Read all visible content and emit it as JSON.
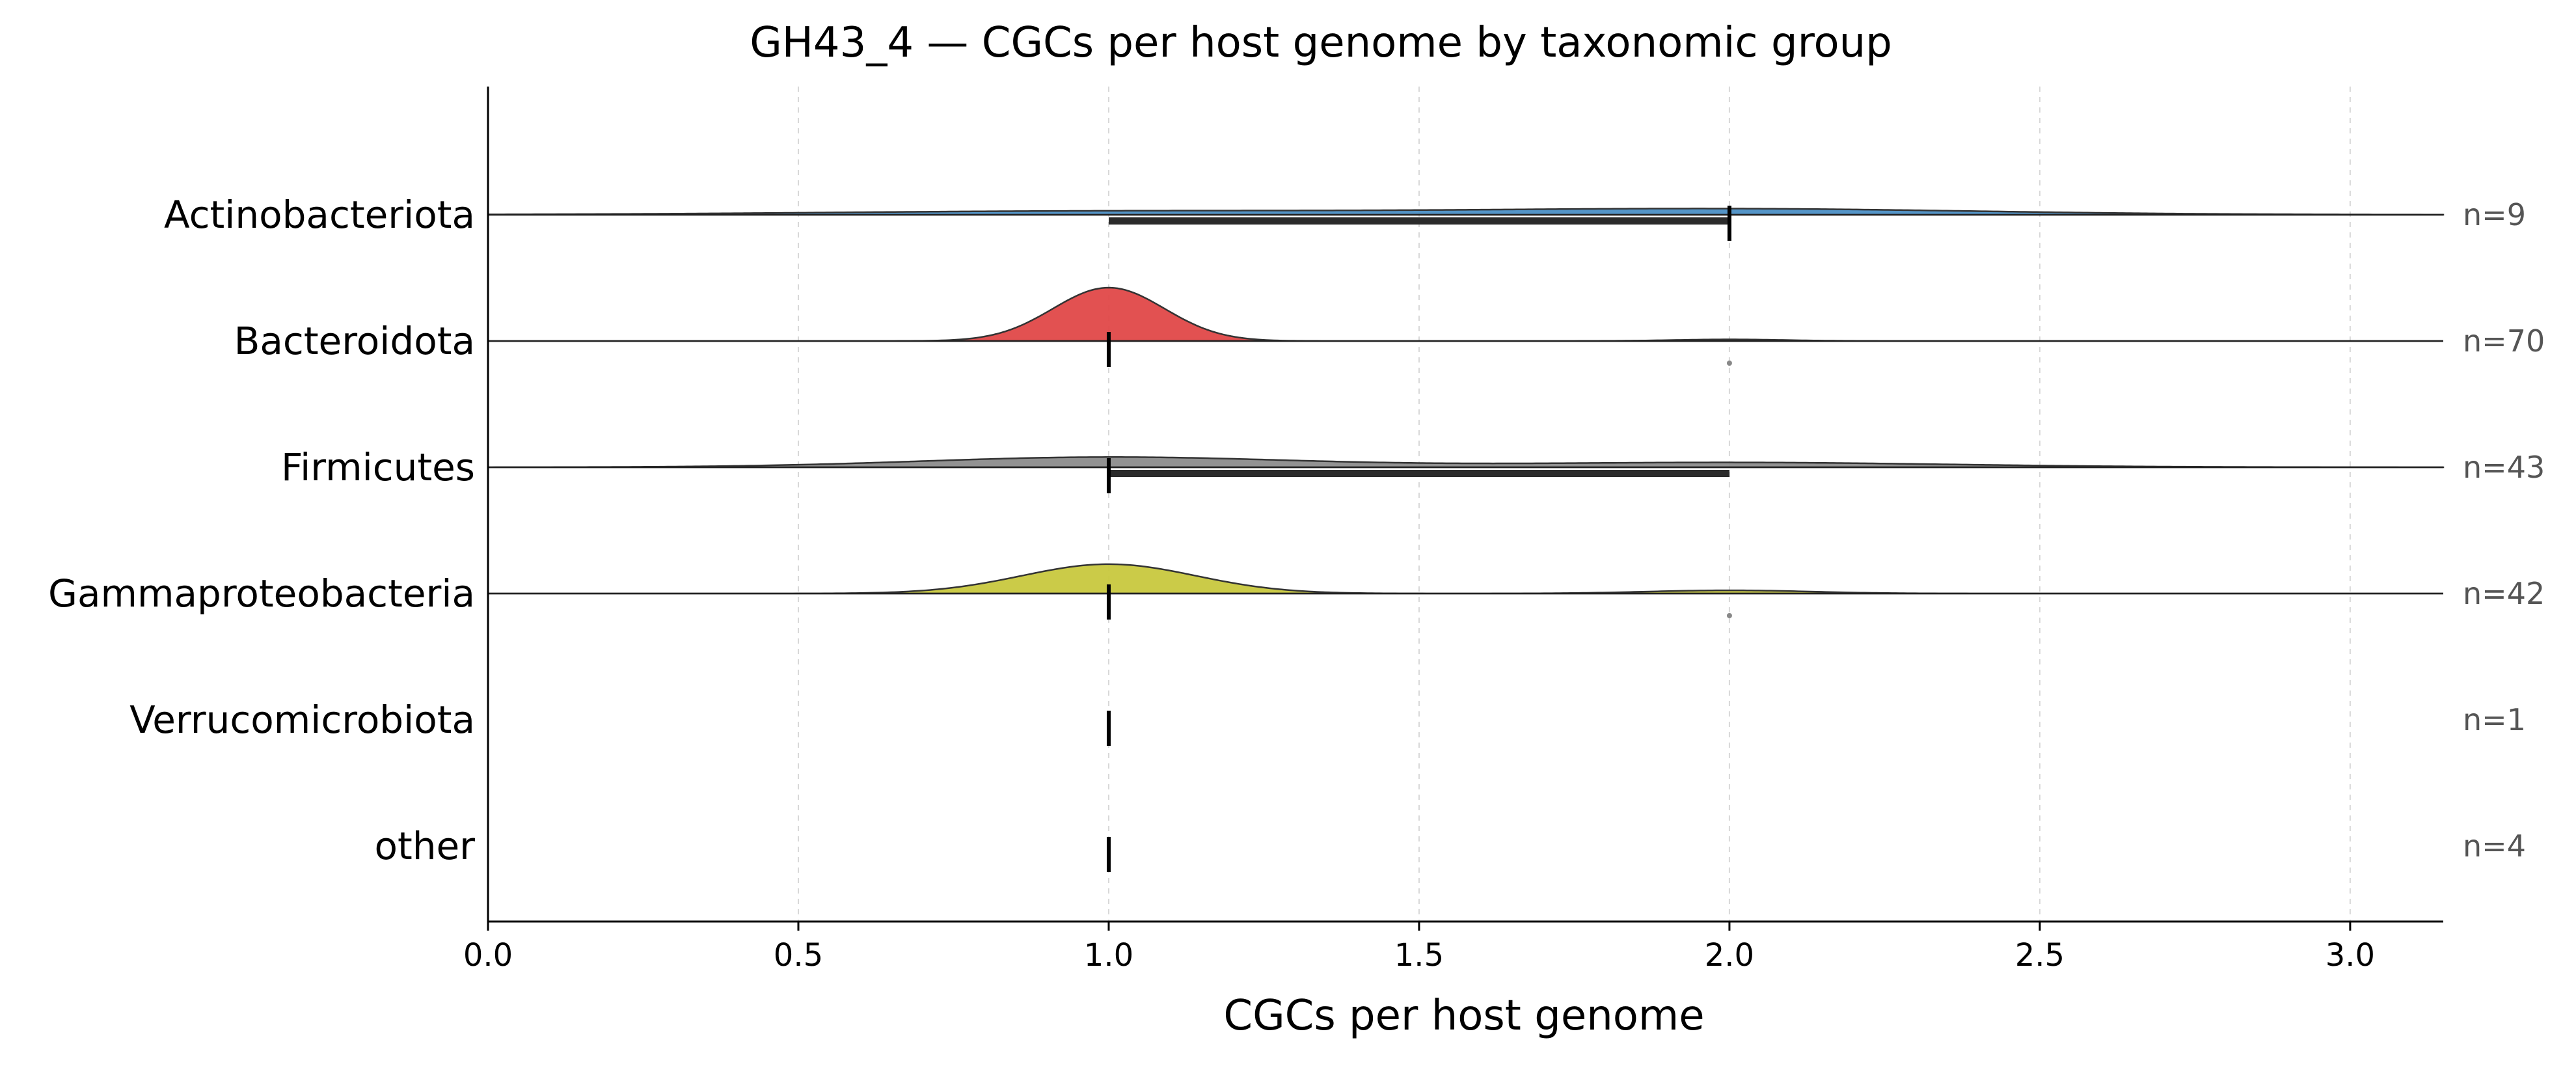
{
  "chart_data": {
    "type": "ridgeline",
    "title": "GH43_4 — CGCs per host genome by taxonomic group",
    "xlabel": "CGCs per host genome",
    "ylabel": "",
    "xlim": [
      0,
      3.15
    ],
    "xticks": [
      0.0,
      0.5,
      1.0,
      1.5,
      2.0,
      2.5,
      3.0
    ],
    "xtick_labels": [
      "0.0",
      "0.5",
      "1.0",
      "1.5",
      "2.0",
      "2.5",
      "3.0"
    ],
    "grid": "vertical dashed",
    "groups": [
      {
        "name": "Actinobacteriota",
        "n": 9,
        "n_label": "n=9",
        "color": "#4b8fc5",
        "density_peaks": [
          {
            "center": 1.0,
            "height": 0.07,
            "width": 0.45
          },
          {
            "center": 2.0,
            "height": 0.11,
            "width": 0.4
          }
        ],
        "median": 2.0,
        "iqr": [
          1.0,
          2.0
        ],
        "outliers": []
      },
      {
        "name": "Bacteroidota",
        "n": 70,
        "n_label": "n=70",
        "color": "#e04848",
        "density_peaks": [
          {
            "center": 1.0,
            "height": 1.0,
            "width": 0.09
          },
          {
            "center": 2.0,
            "height": 0.03,
            "width": 0.09
          }
        ],
        "median": 1.0,
        "iqr": [
          1.0,
          1.0
        ],
        "outliers": [
          2.0
        ]
      },
      {
        "name": "Firmicutes",
        "n": 43,
        "n_label": "n=43",
        "color": "#8c8c8c",
        "density_peaks": [
          {
            "center": 1.0,
            "height": 0.19,
            "width": 0.3
          },
          {
            "center": 2.0,
            "height": 0.09,
            "width": 0.35
          }
        ],
        "median": 1.0,
        "iqr": [
          1.0,
          2.0
        ],
        "outliers": []
      },
      {
        "name": "Gammaproteobacteria",
        "n": 42,
        "n_label": "n=42",
        "color": "#c8c83e",
        "density_peaks": [
          {
            "center": 1.0,
            "height": 0.55,
            "width": 0.14
          },
          {
            "center": 2.0,
            "height": 0.06,
            "width": 0.13
          }
        ],
        "median": 1.0,
        "iqr": [
          1.0,
          1.0
        ],
        "outliers": [
          2.0
        ]
      },
      {
        "name": "Verrucomicrobiota",
        "n": 1,
        "n_label": "n=1",
        "color": "#9a5fb0",
        "density_peaks": [],
        "median": 1.0,
        "iqr": [
          1.0,
          1.0
        ],
        "outliers": []
      },
      {
        "name": "other",
        "n": 4,
        "n_label": "n=4",
        "color": "#8c6d4f",
        "density_peaks": [],
        "median": 1.0,
        "iqr": [
          1.0,
          1.0
        ],
        "outliers": []
      }
    ]
  }
}
